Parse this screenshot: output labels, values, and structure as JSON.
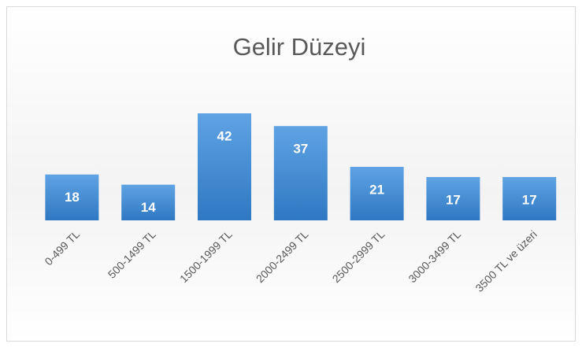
{
  "chart_data": {
    "type": "bar",
    "title": "Gelir Düzeyi",
    "categories": [
      "0-499 TL",
      "500-1499 TL",
      "1500-1999 TL",
      "2000-2499 TL",
      "2500-2999 TL",
      "3000-3499 TL",
      "3500 TL ve üzeri"
    ],
    "values": [
      18,
      14,
      42,
      37,
      21,
      17,
      17
    ],
    "color": "#4a8fd4",
    "grid": false
  }
}
